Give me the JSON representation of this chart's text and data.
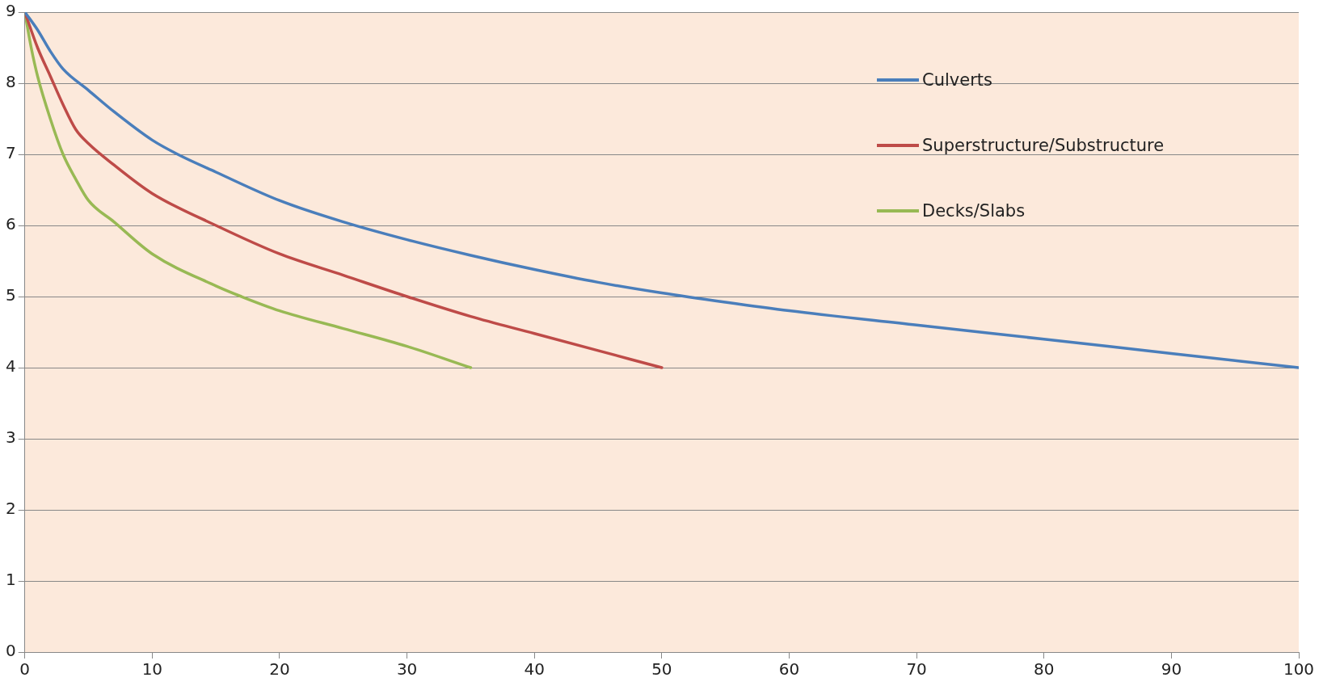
{
  "chart_data": {
    "type": "line",
    "xlim": [
      0,
      100
    ],
    "xticks": [
      0,
      10,
      20,
      30,
      40,
      50,
      60,
      70,
      80,
      90,
      100
    ],
    "ylim": [
      0,
      9
    ],
    "yticks": [
      0,
      1,
      2,
      3,
      4,
      5,
      6,
      7,
      8,
      9
    ],
    "grid": "y",
    "legend": "top right",
    "marker": "none",
    "line_style": "solid",
    "series": [
      {
        "name": "Culverts",
        "color": "#4a7ebb",
        "x": [
          0,
          1,
          2,
          3,
          5,
          7,
          10,
          12,
          15,
          20,
          25,
          30,
          35,
          40,
          45,
          50,
          55,
          60,
          70,
          80,
          90,
          100
        ],
        "values": [
          9,
          8.75,
          8.45,
          8.2,
          7.9,
          7.6,
          7.2,
          7.0,
          6.75,
          6.35,
          6.05,
          5.8,
          5.58,
          5.38,
          5.2,
          5.05,
          4.92,
          4.8,
          4.6,
          4.4,
          4.2,
          4.0
        ]
      },
      {
        "name": "Superstructure/Substructure",
        "color": "#be4b48",
        "x": [
          0,
          1,
          2,
          3,
          4,
          5,
          7,
          10,
          15,
          20,
          25,
          30,
          35,
          40,
          45,
          50
        ],
        "values": [
          9,
          8.5,
          8.1,
          7.7,
          7.35,
          7.15,
          6.85,
          6.45,
          6.0,
          5.6,
          5.3,
          5.0,
          4.72,
          4.48,
          4.24,
          4.0
        ]
      },
      {
        "name": "Decks/Slabs",
        "color": "#98b954",
        "x": [
          0,
          0.5,
          1,
          2,
          3,
          4,
          5,
          7,
          10,
          15,
          17,
          20,
          25,
          30,
          35
        ],
        "values": [
          9,
          8.5,
          8.1,
          7.5,
          7.0,
          6.65,
          6.35,
          6.05,
          5.6,
          5.15,
          5.0,
          4.8,
          4.55,
          4.3,
          4.0
        ]
      }
    ]
  }
}
